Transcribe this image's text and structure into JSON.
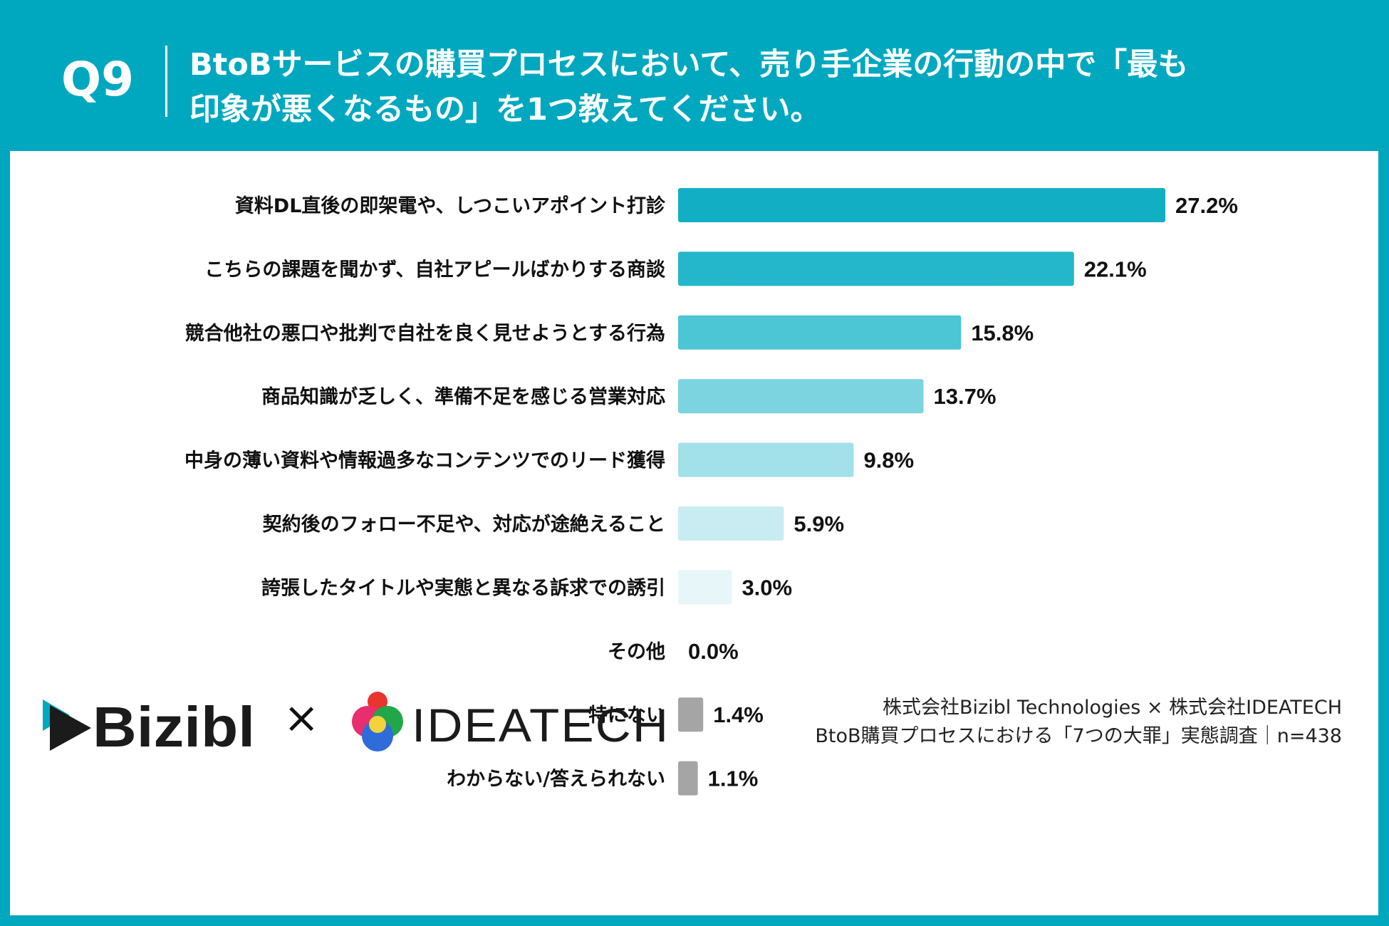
{
  "header": {
    "question_number": "Q9",
    "title_line1": "BtoBサービスの購買プロセスにおいて、売り手企業の行動の中で「最も",
    "title_line2": "印象が悪くなるもの」を1つ教えてください。"
  },
  "chart_data": {
    "type": "bar",
    "orientation": "horizontal",
    "categories": [
      "資料DL直後の即架電や、しつこいアポイント打診",
      "こちらの課題を聞かず、自社アピールばかりする商談",
      "競合他社の悪口や批判で自社を良く見せようとする行為",
      "商品知識が乏しく、準備不足を感じる営業対応",
      "中身の薄い資料や情報過多なコンテンツでのリード獲得",
      "契約後のフォロー不足や、対応が途絶えること",
      "誇張したタイトルや実態と異なる訴求での誘引",
      "その他",
      "特にない",
      "わからない/答えられない"
    ],
    "values": [
      27.2,
      22.1,
      15.8,
      13.7,
      9.8,
      5.9,
      3.0,
      0.0,
      1.4,
      1.1
    ],
    "value_labels": [
      "27.2%",
      "22.1%",
      "15.8%",
      "13.7%",
      "9.8%",
      "5.9%",
      "3.0%",
      "0.0%",
      "1.4%",
      "1.1%"
    ],
    "unit": "%",
    "bar_colors": [
      "#12afc4",
      "#24b6ca",
      "#4cc5d5",
      "#7bd4e0",
      "#a3e1ea",
      "#c8ecf2",
      "#e6f6f9",
      "#e6f6f9",
      "#a5a5a5",
      "#a5a5a5"
    ],
    "xlim": [
      0,
      27.2
    ],
    "grid": false,
    "legend": "none"
  },
  "footer": {
    "brand_left": "Bizibl",
    "times_symbol": "×",
    "brand_right": "IDEATECH",
    "source_line1": "株式会社Bizibl Technologies × 株式会社IDEATECH",
    "source_line2": "BtoB購買プロセスにおける「7つの大罪」実態調査｜n=438"
  },
  "colors": {
    "frame": "#00a8bf",
    "panel": "#ffffff",
    "text": "#111111",
    "logo_dark": "#1b1b1b",
    "logo_accent": "#00a8bf"
  }
}
